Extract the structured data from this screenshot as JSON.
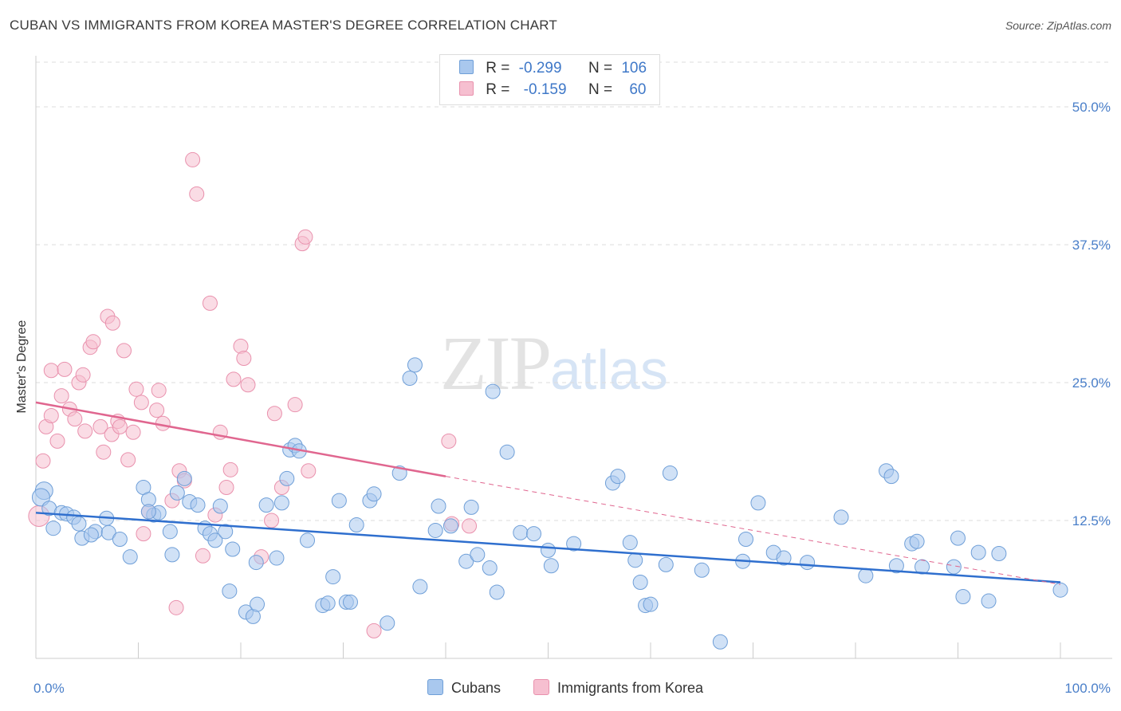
{
  "header": {
    "title": "CUBAN VS IMMIGRANTS FROM KOREA MASTER'S DEGREE CORRELATION CHART",
    "source": "Source: ZipAtlas.com"
  },
  "legend": {
    "rows": [
      {
        "r_label": "R =",
        "r_value": "-0.299",
        "n_label": "N =",
        "n_value": "106"
      },
      {
        "r_label": "R =",
        "r_value": "-0.159",
        "n_label": "N =",
        "n_value": "60"
      }
    ],
    "bottom": [
      "Cubans",
      "Immigrants from Korea"
    ]
  },
  "watermark": {
    "zip": "ZIP",
    "atlas": "atlas"
  },
  "colors": {
    "cubans_fill": "#a9c8ee",
    "cubans_stroke": "#6f9fd8",
    "cubans_line": "#2f6fce",
    "korea_fill": "#f6bfd0",
    "korea_stroke": "#e991ad",
    "korea_line": "#e0668f",
    "tick_text": "#4a7fc9",
    "grid": "#dddddd"
  },
  "chart_data": {
    "type": "scatter",
    "title": "CUBAN VS IMMIGRANTS FROM KOREA MASTER'S DEGREE CORRELATION CHART",
    "xlabel": "",
    "ylabel": "Master's Degree",
    "xlim": [
      0,
      100
    ],
    "ylim": [
      0,
      52
    ],
    "x_tick_labels": [
      "0.0%",
      "100.0%"
    ],
    "y_ticks": [
      12.5,
      25.0,
      37.5,
      50.0
    ],
    "y_tick_labels": [
      "12.5%",
      "25.0%",
      "37.5%",
      "50.0%"
    ],
    "grid": true,
    "series": [
      {
        "name": "Cubans",
        "r": -0.299,
        "n": 106,
        "trend": {
          "x0": 0,
          "y0": 13.2,
          "x1": 100,
          "y1": 6.9
        },
        "points": [
          [
            0.8,
            15.2
          ],
          [
            0.5,
            14.6
          ],
          [
            1.3,
            13.6
          ],
          [
            2.5,
            13.2
          ],
          [
            3.0,
            13.1
          ],
          [
            1.7,
            11.8
          ],
          [
            3.7,
            12.8
          ],
          [
            4.2,
            12.2
          ],
          [
            5.8,
            11.5
          ],
          [
            4.5,
            10.9
          ],
          [
            5.4,
            11.2
          ],
          [
            6.9,
            12.7
          ],
          [
            7.1,
            11.4
          ],
          [
            8.2,
            10.8
          ],
          [
            9.2,
            9.2
          ],
          [
            10.5,
            15.5
          ],
          [
            11.0,
            14.4
          ],
          [
            11.5,
            13.0
          ],
          [
            12.0,
            13.2
          ],
          [
            13.1,
            11.5
          ],
          [
            13.3,
            9.4
          ],
          [
            11.0,
            13.3
          ],
          [
            13.8,
            15.0
          ],
          [
            14.5,
            16.3
          ],
          [
            15.0,
            14.2
          ],
          [
            15.8,
            13.9
          ],
          [
            16.5,
            11.8
          ],
          [
            17.0,
            11.3
          ],
          [
            17.5,
            10.7
          ],
          [
            18.0,
            13.8
          ],
          [
            18.5,
            11.5
          ],
          [
            19.2,
            9.9
          ],
          [
            21.5,
            8.7
          ],
          [
            23.5,
            9.1
          ],
          [
            18.9,
            6.1
          ],
          [
            20.5,
            4.2
          ],
          [
            21.2,
            3.8
          ],
          [
            21.6,
            4.9
          ],
          [
            22.5,
            13.9
          ],
          [
            24.0,
            14.1
          ],
          [
            24.5,
            16.3
          ],
          [
            24.8,
            18.9
          ],
          [
            25.3,
            19.3
          ],
          [
            25.7,
            18.8
          ],
          [
            26.5,
            10.7
          ],
          [
            28.0,
            4.8
          ],
          [
            28.5,
            5.0
          ],
          [
            30.3,
            5.1
          ],
          [
            29.6,
            14.3
          ],
          [
            29.0,
            7.4
          ],
          [
            30.7,
            5.1
          ],
          [
            31.3,
            12.1
          ],
          [
            32.6,
            14.3
          ],
          [
            33.0,
            14.9
          ],
          [
            34.3,
            3.2
          ],
          [
            35.5,
            16.8
          ],
          [
            36.5,
            25.4
          ],
          [
            37.0,
            26.6
          ],
          [
            37.5,
            6.5
          ],
          [
            39.0,
            11.6
          ],
          [
            39.3,
            13.8
          ],
          [
            40.5,
            12.0
          ],
          [
            42.0,
            8.8
          ],
          [
            42.5,
            13.7
          ],
          [
            43.1,
            9.4
          ],
          [
            44.3,
            8.2
          ],
          [
            45.0,
            6.0
          ],
          [
            46.0,
            18.7
          ],
          [
            44.6,
            24.2
          ],
          [
            47.3,
            11.4
          ],
          [
            48.6,
            11.3
          ],
          [
            50.0,
            9.8
          ],
          [
            50.3,
            8.4
          ],
          [
            52.5,
            10.4
          ],
          [
            56.3,
            15.9
          ],
          [
            56.8,
            16.5
          ],
          [
            58.0,
            10.5
          ],
          [
            58.5,
            8.9
          ],
          [
            59.0,
            6.9
          ],
          [
            59.5,
            4.8
          ],
          [
            60.0,
            4.9
          ],
          [
            61.5,
            8.5
          ],
          [
            61.9,
            16.8
          ],
          [
            65.0,
            8.0
          ],
          [
            66.8,
            1.5
          ],
          [
            69.0,
            8.8
          ],
          [
            69.3,
            10.8
          ],
          [
            70.5,
            14.1
          ],
          [
            72.0,
            9.6
          ],
          [
            73.0,
            9.1
          ],
          [
            75.3,
            8.7
          ],
          [
            78.6,
            12.8
          ],
          [
            81.0,
            7.5
          ],
          [
            83.0,
            17.0
          ],
          [
            83.5,
            16.5
          ],
          [
            84.0,
            8.4
          ],
          [
            85.5,
            10.4
          ],
          [
            86.0,
            10.6
          ],
          [
            86.5,
            8.3
          ],
          [
            89.6,
            8.3
          ],
          [
            90.0,
            10.9
          ],
          [
            90.5,
            5.6
          ],
          [
            92.0,
            9.6
          ],
          [
            93.0,
            5.2
          ],
          [
            94.0,
            9.5
          ],
          [
            100.0,
            6.2
          ]
        ]
      },
      {
        "name": "Immigrants from Korea",
        "r": -0.159,
        "n": 60,
        "trend": {
          "x0": 0,
          "y0": 23.2,
          "x1": 40,
          "y1": 16.5
        },
        "trend_extension": {
          "x0": 40,
          "y0": 16.5,
          "x1": 100,
          "y1": 6.7
        },
        "points": [
          [
            0.3,
            12.9
          ],
          [
            0.7,
            17.9
          ],
          [
            1.0,
            21.0
          ],
          [
            1.5,
            22.0
          ],
          [
            1.5,
            26.1
          ],
          [
            2.1,
            19.7
          ],
          [
            2.5,
            23.8
          ],
          [
            2.8,
            26.2
          ],
          [
            3.3,
            22.6
          ],
          [
            3.8,
            21.7
          ],
          [
            4.2,
            25.0
          ],
          [
            4.6,
            25.7
          ],
          [
            4.8,
            20.6
          ],
          [
            5.3,
            28.2
          ],
          [
            5.6,
            28.7
          ],
          [
            6.3,
            21.0
          ],
          [
            6.6,
            18.7
          ],
          [
            7.0,
            31.0
          ],
          [
            7.4,
            20.3
          ],
          [
            7.5,
            30.4
          ],
          [
            8.0,
            21.5
          ],
          [
            8.2,
            21.0
          ],
          [
            8.6,
            27.9
          ],
          [
            9.0,
            18.0
          ],
          [
            9.5,
            20.5
          ],
          [
            9.8,
            24.4
          ],
          [
            10.3,
            23.2
          ],
          [
            10.5,
            11.3
          ],
          [
            11.0,
            13.3
          ],
          [
            11.8,
            22.5
          ],
          [
            12.0,
            24.3
          ],
          [
            12.4,
            21.3
          ],
          [
            13.3,
            14.3
          ],
          [
            13.7,
            4.6
          ],
          [
            14.0,
            17.0
          ],
          [
            14.5,
            16.1
          ],
          [
            15.3,
            45.2
          ],
          [
            15.7,
            42.1
          ],
          [
            16.3,
            9.3
          ],
          [
            17.0,
            32.2
          ],
          [
            17.5,
            13.0
          ],
          [
            18.0,
            20.5
          ],
          [
            18.6,
            15.5
          ],
          [
            19.0,
            17.1
          ],
          [
            19.3,
            25.3
          ],
          [
            20.0,
            28.3
          ],
          [
            20.3,
            27.2
          ],
          [
            20.7,
            24.8
          ],
          [
            22.0,
            9.2
          ],
          [
            23.0,
            12.5
          ],
          [
            23.3,
            22.2
          ],
          [
            24.0,
            15.5
          ],
          [
            25.3,
            23.0
          ],
          [
            26.0,
            37.6
          ],
          [
            26.3,
            38.2
          ],
          [
            26.6,
            17.0
          ],
          [
            33.0,
            2.5
          ],
          [
            40.3,
            19.7
          ],
          [
            40.6,
            12.2
          ],
          [
            42.3,
            12.0
          ]
        ]
      }
    ]
  }
}
